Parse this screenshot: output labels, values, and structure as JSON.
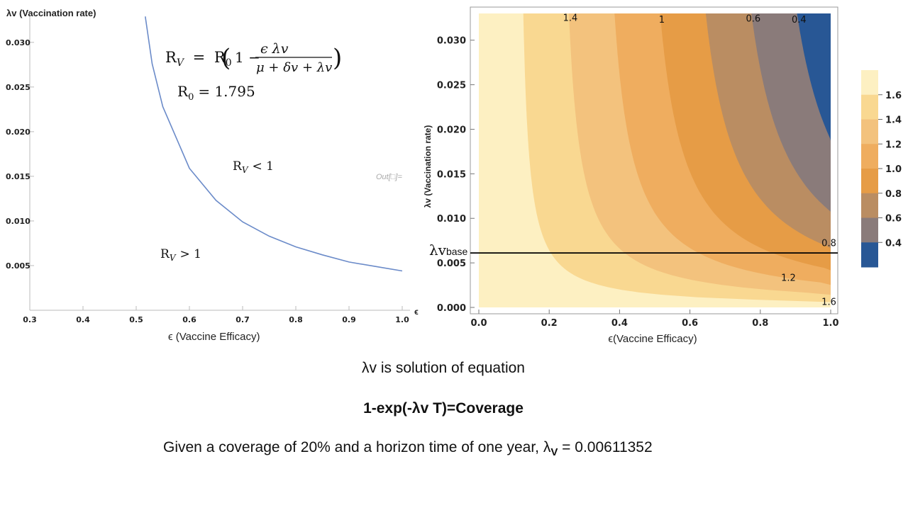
{
  "equation": {
    "rv": "R",
    "rv_sub": "V",
    "eq_sign": "=",
    "r0": "R",
    "r0_sub": "0",
    "paren_open": "(",
    "one_minus": "1 −",
    "numerator": "ϵ λv",
    "denominator": "μ + δv + λv",
    "paren_close": ")",
    "r0_value_label": "R",
    "r0_value_sub": "0",
    "r0_value": "= 1.795"
  },
  "regions": {
    "below": "R",
    "below_sub": "V",
    "below_rel": "< 1",
    "above": "R",
    "above_sub": "V",
    "above_rel": "> 1"
  },
  "out_label": "Out[□]=",
  "lambda_base": {
    "symbol": "λv",
    "sub": "base"
  },
  "text": {
    "line1": "λv is solution of equation",
    "line2": "1-exp(-λv T)=Coverage",
    "line3_pre": "Given a coverage of 20% and a horizon time of one year, λ",
    "line3_sub": "V",
    "line3_post": " = 0.00611352"
  },
  "chart_data": [
    {
      "type": "line",
      "title": "",
      "xlabel": "ϵ  (Vaccine Efficacy)",
      "ylabel": "λv  (Vaccination rate)",
      "xlim": [
        0.3,
        1.0
      ],
      "ylim": [
        0.0,
        0.033
      ],
      "x_ticks": [
        "0.3",
        "0.4",
        "0.5",
        "0.6",
        "0.7",
        "0.8",
        "0.9",
        "1.0"
      ],
      "y_ticks": [
        "0.005",
        "0.010",
        "0.015",
        "0.020",
        "0.025",
        "0.030"
      ],
      "x_axis_end_label": "ϵ",
      "series": [
        {
          "color": "#6b8bc9",
          "x": [
            0.517,
            0.53,
            0.55,
            0.6,
            0.65,
            0.7,
            0.75,
            0.8,
            0.85,
            0.9,
            0.95,
            1.0
          ],
          "y": [
            0.0329,
            0.0276,
            0.0228,
            0.0159,
            0.0123,
            0.0099,
            0.0083,
            0.0071,
            0.0062,
            0.0054,
            0.0049,
            0.0044
          ]
        }
      ]
    },
    {
      "type": "heatmap",
      "title": "",
      "xlabel": "ϵ(Vaccine Efficacy)",
      "ylabel": "λv (Vaccination rate)",
      "xlim": [
        0.0,
        1.0
      ],
      "ylim": [
        0.0,
        0.033
      ],
      "x_ticks": [
        "0.0",
        "0.2",
        "0.4",
        "0.6",
        "0.8",
        "1.0"
      ],
      "y_ticks": [
        "0.000",
        "0.005",
        "0.010",
        "0.015",
        "0.020",
        "0.025",
        "0.030"
      ],
      "r0": 1.795,
      "lambda_base": 0.00611352,
      "levels": [
        1.6,
        1.4,
        1.2,
        1.0,
        0.8,
        0.6,
        0.4
      ],
      "colors": [
        "#fdf0c2",
        "#f9d891",
        "#f3c27d",
        "#efad5f",
        "#e69c46",
        "#ba8d62",
        "#8a7b7a",
        "#285795"
      ],
      "legend_ticks": [
        "1.6",
        "1.4",
        "1.2",
        "1.0",
        "0.8",
        "0.6",
        "0.4"
      ],
      "contour_labels": [
        {
          "text": "1.4",
          "x": 0.26,
          "y": 0.0325
        },
        {
          "text": "1",
          "x": 0.52,
          "y": 0.0323
        },
        {
          "text": "0.6",
          "x": 0.78,
          "y": 0.0324
        },
        {
          "text": "0.4",
          "x": 0.91,
          "y": 0.0323
        },
        {
          "text": "0.8",
          "x": 0.995,
          "y": 0.0072
        },
        {
          "text": "1.2",
          "x": 0.88,
          "y": 0.0033
        },
        {
          "text": "1.6",
          "x": 0.995,
          "y": 0.0006
        }
      ]
    }
  ]
}
